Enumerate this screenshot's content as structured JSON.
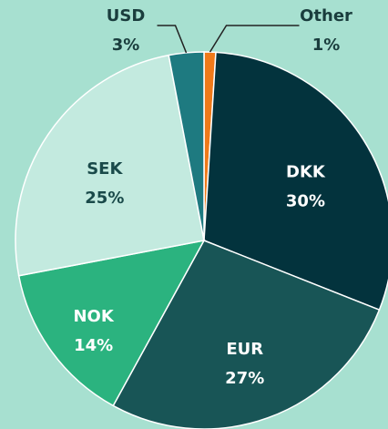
{
  "chart_data": {
    "type": "pie",
    "categories": [
      "Other",
      "DKK",
      "EUR",
      "NOK",
      "SEK",
      "USD"
    ],
    "values": [
      1,
      30,
      27,
      14,
      25,
      3
    ],
    "value_labels": [
      "1%",
      "30%",
      "27%",
      "14%",
      "25%",
      "3%"
    ],
    "colors": [
      "#f07a1a",
      "#03333d",
      "#185556",
      "#2bb37f",
      "#c3eadf",
      "#1e7a80"
    ]
  }
}
